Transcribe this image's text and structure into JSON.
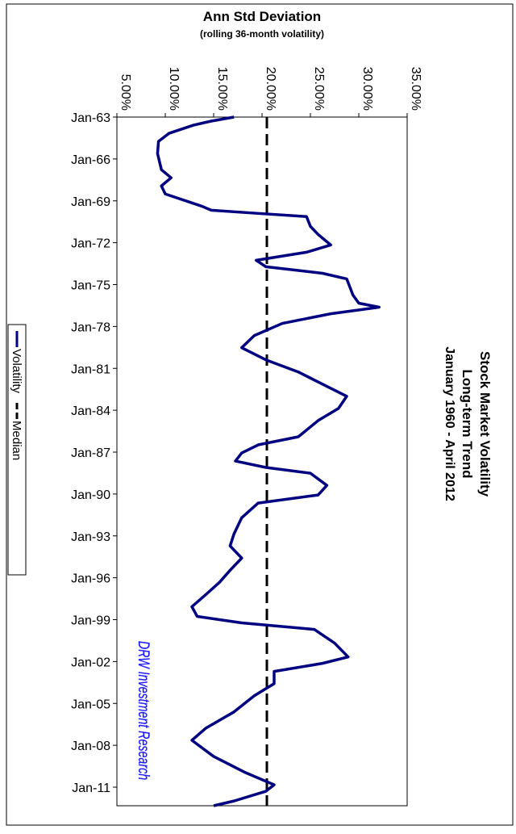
{
  "chart_data": {
    "type": "line",
    "title": "Stock Market Volatility",
    "subtitle": [
      "Long-term Trend",
      "January 1960 - April 2012"
    ],
    "y_label": "Ann Std Deviation",
    "y_sublabel": "(rolling 36-month volatility)",
    "annotation": "DRW Investment Research",
    "xlim": [
      1963,
      2012.33
    ],
    "xticks": [
      {
        "value": 1963,
        "label": "Jan-63"
      },
      {
        "value": 1966,
        "label": "Jan-66"
      },
      {
        "value": 1969,
        "label": "Jan-69"
      },
      {
        "value": 1972,
        "label": "Jan-72"
      },
      {
        "value": 1975,
        "label": "Jan-75"
      },
      {
        "value": 1978,
        "label": "Jan-78"
      },
      {
        "value": 1981,
        "label": "Jan-81"
      },
      {
        "value": 1984,
        "label": "Jan-84"
      },
      {
        "value": 1987,
        "label": "Jan-87"
      },
      {
        "value": 1990,
        "label": "Jan-90"
      },
      {
        "value": 1993,
        "label": "Jan-93"
      },
      {
        "value": 1996,
        "label": "Jan-96"
      },
      {
        "value": 1999,
        "label": "Jan-99"
      },
      {
        "value": 2002,
        "label": "Jan-02"
      },
      {
        "value": 2005,
        "label": "Jan-05"
      },
      {
        "value": 2008,
        "label": "Jan-08"
      },
      {
        "value": 2011,
        "label": "Jan-11"
      }
    ],
    "ylim": [
      5,
      35
    ],
    "yticks": [
      {
        "value": 5,
        "label": "5.00%"
      },
      {
        "value": 10,
        "label": "10.00%"
      },
      {
        "value": 15,
        "label": "15.00%"
      },
      {
        "value": 20,
        "label": "20.00%"
      },
      {
        "value": 25,
        "label": "25.00%"
      },
      {
        "value": 30,
        "label": "30.00%"
      },
      {
        "value": 35,
        "label": "35.00%"
      }
    ],
    "series": [
      {
        "name": "Volatility",
        "color": "#000080",
        "dash": false,
        "x": [
          1963.0,
          1963.29,
          1963.58,
          1964.16,
          1964.74,
          1965.61,
          1966.77,
          1967.35,
          1967.93,
          1968.51,
          1969.38,
          1969.67,
          1969.9,
          1970.13,
          1970.83,
          1971.41,
          1972.16,
          1972.68,
          1973.26,
          1973.72,
          1974.19,
          1974.59,
          1975.75,
          1976.33,
          1976.62,
          1977.09,
          1977.78,
          1978.65,
          1979.52,
          1980.39,
          1981.26,
          1982.13,
          1983.0,
          1983.87,
          1984.74,
          1985.9,
          1986.48,
          1987.06,
          1987.64,
          1988.1,
          1988.51,
          1989.38,
          1990.07,
          1990.65,
          1991.7,
          1992.86,
          1993.72,
          1994.59,
          1995.46,
          1996.33,
          1997.2,
          1998.07,
          1998.77,
          1999.23,
          1999.7,
          2000.68,
          2001.67,
          2002.13,
          2002.71,
          2003.58,
          2004.45,
          2005.61,
          2006.77,
          2007.64,
          2008.8,
          2009.96,
          2010.83,
          2011.29,
          2011.99,
          2012.33
        ],
        "values": [
          17.1,
          14.75,
          12.9,
          10.4,
          9.3,
          9.2,
          9.6,
          10.6,
          9.6,
          10.0,
          13.75,
          14.75,
          19.6,
          24.6,
          25.0,
          25.8,
          27.1,
          24.6,
          19.4,
          20.4,
          26.25,
          28.75,
          29.4,
          30.0,
          32.1,
          27.1,
          22.1,
          19.2,
          17.9,
          20.4,
          23.75,
          26.25,
          28.75,
          27.9,
          25.8,
          23.75,
          19.6,
          17.9,
          17.25,
          20.4,
          25.0,
          26.7,
          25.8,
          19.6,
          17.9,
          17.1,
          16.7,
          17.9,
          16.7,
          15.6,
          14.2,
          12.75,
          13.3,
          17.9,
          25.4,
          27.5,
          28.9,
          26.25,
          21.25,
          21.25,
          19.2,
          17.1,
          14.2,
          12.75,
          15.0,
          18.3,
          21.25,
          20.4,
          17.1,
          15.0
        ]
      },
      {
        "name": "Median",
        "color": "#000000",
        "dash": true,
        "x": [
          1963,
          2012.33
        ],
        "values": [
          20.5,
          20.5
        ]
      }
    ]
  }
}
